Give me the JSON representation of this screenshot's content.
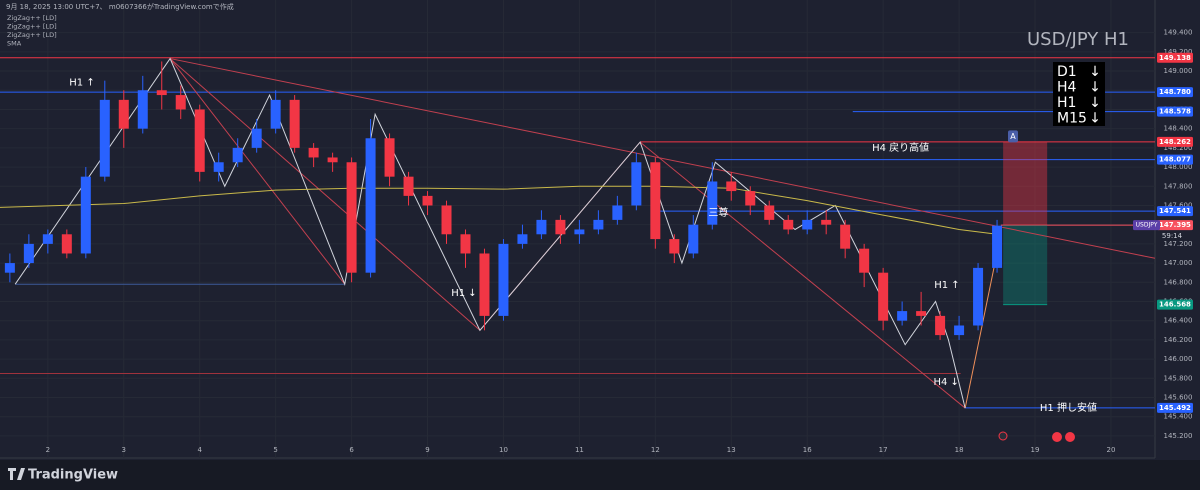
{
  "chart_data": {
    "type": "candlestick",
    "title": "USD/JPY H1",
    "header": "9月 18, 2025 13:00 UTC+7、 m0607366がTradingView.comで作成",
    "indicators": [
      "ZigZag++ [LD]",
      "ZigZag++ [LD]",
      "ZigZag++ [LD]",
      "SMA"
    ],
    "symbol": "USDJPY",
    "countdown": "59:14",
    "footer": "TradingView",
    "colors": {
      "up": "#2962ff",
      "down": "#f23645"
    },
    "x": [
      -0.5,
      -0.25,
      0,
      0.25,
      0.5,
      0.75,
      1,
      1.25,
      1.5,
      1.75,
      2,
      2.25,
      2.5,
      2.75,
      3,
      3.25,
      3.5,
      3.75,
      4,
      4.25,
      4.5,
      4.75,
      5,
      5.25,
      5.5,
      5.75,
      6,
      6.25,
      6.5,
      6.75,
      7,
      7.25,
      7.5,
      7.75,
      8,
      8.25,
      8.5,
      8.75,
      9,
      9.25,
      9.5,
      9.75,
      10,
      10.25,
      10.5,
      10.75,
      11,
      11.25,
      11.5,
      11.75,
      12,
      12.25,
      12.5
    ],
    "open": [
      146.9,
      147.0,
      147.2,
      147.3,
      147.1,
      147.9,
      148.7,
      148.4,
      148.8,
      148.75,
      148.6,
      147.95,
      148.05,
      148.2,
      148.4,
      148.7,
      148.2,
      148.1,
      148.05,
      146.9,
      148.3,
      147.9,
      147.7,
      147.6,
      147.3,
      147.1,
      146.45,
      147.2,
      147.3,
      147.45,
      147.3,
      147.35,
      147.45,
      147.6,
      148.05,
      147.25,
      147.1,
      147.4,
      147.85,
      147.75,
      147.6,
      147.45,
      147.35,
      147.45,
      147.4,
      147.15,
      146.9,
      146.4,
      146.5,
      146.45,
      146.25,
      146.35,
      146.95
    ],
    "high": [
      147.1,
      147.3,
      147.35,
      147.35,
      148.0,
      148.9,
      148.8,
      148.95,
      149.1,
      148.85,
      148.65,
      148.15,
      148.3,
      148.5,
      148.8,
      148.75,
      148.25,
      148.15,
      148.1,
      148.5,
      148.35,
      147.95,
      147.75,
      147.65,
      147.35,
      147.15,
      147.25,
      147.4,
      147.55,
      147.5,
      147.45,
      147.55,
      147.7,
      148.15,
      148.1,
      147.3,
      147.5,
      148.05,
      147.95,
      147.8,
      147.65,
      147.5,
      147.55,
      147.55,
      147.45,
      147.2,
      146.95,
      146.6,
      146.7,
      146.5,
      146.45,
      147.0,
      147.45
    ],
    "low": [
      146.8,
      146.95,
      147.1,
      147.05,
      147.05,
      147.85,
      148.2,
      148.35,
      148.6,
      148.5,
      147.85,
      147.85,
      148.0,
      148.15,
      148.35,
      148.15,
      148.0,
      147.95,
      146.8,
      146.85,
      147.8,
      147.6,
      147.5,
      147.2,
      146.95,
      146.3,
      146.4,
      147.15,
      147.25,
      147.2,
      147.2,
      147.3,
      147.4,
      147.55,
      147.15,
      147.0,
      147.05,
      147.35,
      147.65,
      147.5,
      147.4,
      147.3,
      147.3,
      147.3,
      147.05,
      146.75,
      146.3,
      146.35,
      146.35,
      146.2,
      146.2,
      146.3,
      146.9
    ],
    "close": [
      147.0,
      147.2,
      147.3,
      147.1,
      147.9,
      148.7,
      148.4,
      148.8,
      148.75,
      148.6,
      147.95,
      148.05,
      148.2,
      148.4,
      148.7,
      148.2,
      148.1,
      148.05,
      146.9,
      148.3,
      147.9,
      147.7,
      147.6,
      147.3,
      147.1,
      146.45,
      147.2,
      147.3,
      147.45,
      147.3,
      147.35,
      147.45,
      147.6,
      148.05,
      147.25,
      147.1,
      147.4,
      147.85,
      147.75,
      147.6,
      147.45,
      147.35,
      147.45,
      147.4,
      147.15,
      146.9,
      146.4,
      146.5,
      146.45,
      146.25,
      146.35,
      146.95,
      147.39
    ],
    "sma": {
      "color": "#c9b94a",
      "x": [
        -0.63,
        1,
        2,
        3,
        4,
        5,
        6,
        7,
        8,
        9,
        10,
        11,
        12,
        12.5
      ],
      "values": [
        147.58,
        147.62,
        147.7,
        147.76,
        147.78,
        147.78,
        147.77,
        147.8,
        147.8,
        147.78,
        147.65,
        147.5,
        147.35,
        147.3
      ]
    },
    "xlim": [
      -0.63,
      14.58
    ],
    "ylim": [
      144.97,
      149.74
    ],
    "grid": true,
    "xticks": [
      {
        "value": 0,
        "label": "2"
      },
      {
        "value": 1,
        "label": "3"
      },
      {
        "value": 2,
        "label": "4"
      },
      {
        "value": 3,
        "label": "5"
      },
      {
        "value": 4,
        "label": "6"
      },
      {
        "value": 5,
        "label": "9"
      },
      {
        "value": 6,
        "label": "10"
      },
      {
        "value": 7,
        "label": "11"
      },
      {
        "value": 8,
        "label": "12"
      },
      {
        "value": 9,
        "label": "13"
      },
      {
        "value": 10,
        "label": "16"
      },
      {
        "value": 11,
        "label": "17"
      },
      {
        "value": 12,
        "label": "18"
      },
      {
        "value": 13,
        "label": "19"
      },
      {
        "value": 14,
        "label": "20"
      }
    ],
    "yticks": [
      {
        "value": 149.4,
        "label": "149.400"
      },
      {
        "value": 149.2,
        "label": "149.200"
      },
      {
        "value": 149,
        "label": "149.000"
      },
      {
        "value": 148.8,
        "label": "148.800"
      },
      {
        "value": 148.6,
        "label": "148.600"
      },
      {
        "value": 148.4,
        "label": "148.400"
      },
      {
        "value": 148.2,
        "label": "148.200"
      },
      {
        "value": 148,
        "label": "148.000"
      },
      {
        "value": 147.8,
        "label": "147.800"
      },
      {
        "value": 147.6,
        "label": "147.600"
      },
      {
        "value": 147.4,
        "label": "147.400"
      },
      {
        "value": 147.2,
        "label": "147.200"
      },
      {
        "value": 147,
        "label": "147.000"
      },
      {
        "value": 146.8,
        "label": "146.800"
      },
      {
        "value": 146.6,
        "label": "146.600"
      },
      {
        "value": 146.4,
        "label": "146.400"
      },
      {
        "value": 146.2,
        "label": "146.200"
      },
      {
        "value": 146,
        "label": "146.000"
      },
      {
        "value": 145.8,
        "label": "145.800"
      },
      {
        "value": 145.6,
        "label": "145.600"
      },
      {
        "value": 145.4,
        "label": "145.400"
      },
      {
        "value": 145.2,
        "label": "145.200"
      }
    ],
    "levels": [
      {
        "value": 149.138,
        "label": "149.138",
        "color": "#f23645",
        "from": -0.63,
        "to": 14.58
      },
      {
        "value": 148.78,
        "label": "148.780",
        "color": "#2962ff",
        "from": -0.63,
        "to": 14.58
      },
      {
        "value": 148.578,
        "label": "148.578",
        "color": "#2962ff",
        "from": 10.6,
        "to": 14.58
      },
      {
        "value": 148.262,
        "label": "148.262",
        "color": "#f23645",
        "from": 7.8,
        "to": 14.58
      },
      {
        "value": 148.077,
        "label": "148.077",
        "color": "#2962ff",
        "from": 8.79,
        "to": 14.58
      },
      {
        "value": 147.541,
        "label": "147.541",
        "color": "#2962ff",
        "from": 8.0,
        "to": 14.58
      },
      {
        "value": 147.395,
        "label": "147.395",
        "color": "#f7525f",
        "from": 12.55,
        "to": 14.58
      },
      {
        "value": 146.568,
        "label": "146.568",
        "color": "#089981",
        "from": 12.58,
        "to": 13.16
      },
      {
        "value": 145.492,
        "label": "145.492",
        "color": "#2962ff",
        "from": 12.08,
        "to": 14.58
      },
      {
        "value": 146.78,
        "color": "#3d5a99",
        "from": -0.43,
        "to": 3.91
      },
      {
        "value": 145.85,
        "color": "#a0323c",
        "from": -0.63,
        "to": 12.02
      }
    ],
    "zigzag": {
      "color": "#d1d4dc",
      "x": [
        -0.43,
        1.61,
        2.33,
        2.92,
        3.91,
        4.31,
        5.69,
        7.8,
        8.35,
        8.79,
        9.84,
        10.37,
        11.29,
        11.69,
        11.86,
        12.08
      ],
      "y": [
        146.78,
        149.13,
        147.8,
        148.75,
        146.78,
        148.55,
        146.3,
        148.26,
        147.0,
        148.05,
        147.35,
        147.6,
        146.15,
        146.6,
        146.2,
        145.49
      ]
    },
    "trendlines": [
      {
        "color": "#c2404f",
        "x": [
          1.61,
          5.69
        ],
        "y": [
          149.13,
          146.3
        ]
      },
      {
        "color": "#c2404f",
        "x": [
          5.69,
          7.8
        ],
        "y": [
          146.3,
          148.26
        ]
      },
      {
        "color": "#c2404f",
        "x": [
          7.8,
          12.08
        ],
        "y": [
          148.26,
          145.49
        ]
      },
      {
        "color": "#c2404f",
        "x": [
          1.61,
          14.58
        ],
        "y": [
          149.13,
          147.05
        ]
      },
      {
        "color": "#c2404f",
        "x": [
          1.61,
          3.91
        ],
        "y": [
          149.13,
          146.78
        ]
      },
      {
        "color": "#f0905a",
        "x": [
          12.08,
          12.55
        ],
        "y": [
          145.49,
          147.3
        ]
      }
    ],
    "position": {
      "from": 12.58,
      "to": 13.16,
      "entry": 147.395,
      "stop": 148.262,
      "target": 146.568
    },
    "annotations": [
      {
        "text": "H1 ↑",
        "x": 0.45,
        "y": 148.88
      },
      {
        "text": "H1 ↓",
        "x": 5.48,
        "y": 146.69
      },
      {
        "text": "三尊",
        "x": 8.83,
        "y": 147.52
      },
      {
        "text": "H1 ↑",
        "x": 11.84,
        "y": 146.77
      },
      {
        "text": "H4 ↓",
        "x": 11.83,
        "y": 145.76
      },
      {
        "text": "H4 戻り高値",
        "x": 11.23,
        "y": 148.2
      },
      {
        "text": "H1 押し安値",
        "x": 13.44,
        "y": 145.49
      },
      {
        "text": "A",
        "x": 12.71,
        "y": 148.32
      }
    ],
    "status": [
      {
        "tf": "D1",
        "dir": "↓"
      },
      {
        "tf": "H4",
        "dir": "↓"
      },
      {
        "tf": "H1",
        "dir": "↓"
      },
      {
        "tf": "M15",
        "dir": "↓"
      }
    ]
  }
}
